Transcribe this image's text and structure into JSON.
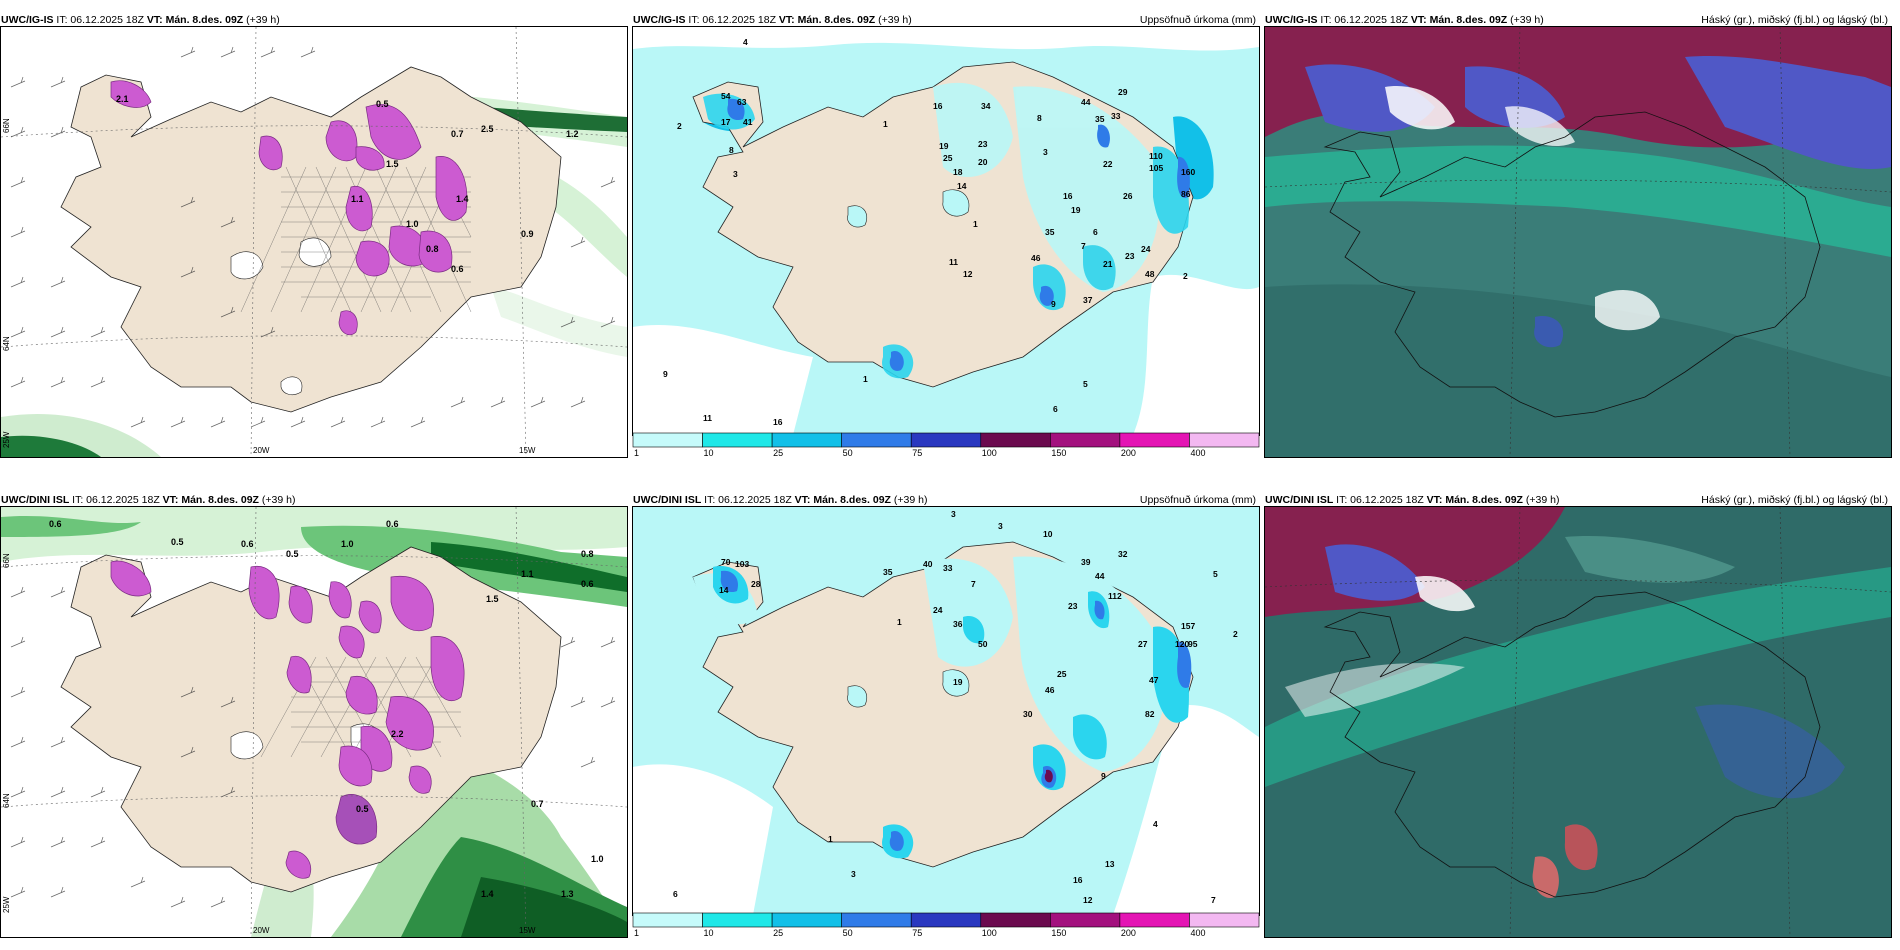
{
  "rows": [
    {
      "model": "UWC/IG-IS",
      "init": "IT: 06.12.2025 18Z",
      "valid": "VT: Mán. 8.des. 09Z",
      "lead": "(+39 h)",
      "wind_panel": {
        "lat_labels": [
          "66N",
          "64N",
          "25W"
        ],
        "lon_labels": [
          "20W",
          "15W"
        ],
        "values": [
          "0.5",
          "1.2",
          "0.7",
          "1.5",
          "2.5",
          "1.1",
          "1.0",
          "0.6",
          "0.8",
          "1.4",
          "0.9",
          "2.1"
        ]
      },
      "precip_panel": {
        "title": "Uppsöfnuð úrkoma (mm)",
        "values": [
          "4",
          "54",
          "63",
          "17",
          "41",
          "8",
          "2",
          "1",
          "3",
          "16",
          "19",
          "34",
          "44",
          "29",
          "35",
          "33",
          "25",
          "18",
          "23",
          "20",
          "14",
          "8",
          "3",
          "1",
          "110",
          "105",
          "160",
          "22",
          "26",
          "86",
          "12",
          "11",
          "16",
          "19",
          "6",
          "35",
          "7",
          "21",
          "23",
          "24",
          "46",
          "48",
          "2",
          "9",
          "37",
          "9",
          "11",
          "16",
          "1",
          "5",
          "6"
        ]
      },
      "cloud_panel": {
        "title": "Háský (gr.), miðský (fj.bl.) og lágský (bl.)"
      }
    },
    {
      "model": "UWC/DINI ISL",
      "init": "IT: 06.12.2025 18Z",
      "valid": "VT: Mán. 8.des. 09Z",
      "lead": "(+39 h)",
      "wind_panel": {
        "lat_labels": [
          "66N",
          "64N",
          "25W"
        ],
        "lon_labels": [
          "20W",
          "15W"
        ],
        "values": [
          "0.6",
          "0.6",
          "0.5",
          "0.6",
          "1.0",
          "0.5",
          "1.1",
          "1.5",
          "0.8",
          "2.2",
          "0.7",
          "1.0",
          "1.3",
          "0.6",
          "0.5",
          "1.4"
        ]
      },
      "precip_panel": {
        "title": "Uppsöfnuð úrkoma (mm)",
        "values": [
          "3",
          "3",
          "10",
          "39",
          "32",
          "70",
          "103",
          "35",
          "40",
          "33",
          "44",
          "28",
          "7",
          "14",
          "24",
          "36",
          "50",
          "23",
          "27",
          "112",
          "157",
          "120",
          "95",
          "2",
          "5",
          "1",
          "19",
          "25",
          "46",
          "30",
          "47",
          "82",
          "9",
          "13",
          "16",
          "12",
          "6",
          "7",
          "4",
          "3",
          "1"
        ]
      },
      "cloud_panel": {
        "title": "Háský (gr.), miðský (fj.bl.) og lágský (bl.)"
      }
    }
  ],
  "colorbar": {
    "ticks": [
      "1",
      "10",
      "25",
      "50",
      "75",
      "100",
      "150",
      "200",
      "400"
    ],
    "colors": [
      "#c6fbfb",
      "#1fe8e8",
      "#12c0e8",
      "#2f7be8",
      "#2a38c0",
      "#6b0a4e",
      "#a3117e",
      "#e415b4",
      "#f3b8f1"
    ]
  },
  "colors": {
    "land": "#efe3d2",
    "water": "#ffffff",
    "precip_light": "#b9f7f7",
    "precip_mid": "#2bd5ee",
    "wind_green_light": "#d6f2d6",
    "wind_green": "#6cc57a",
    "wind_green_dark": "#0f6e2a",
    "magenta": "#cc5bd1",
    "cloud_dark": "#2f6b68",
    "cloud_mid": "#4a8f86",
    "cloud_teal": "#1fd2a6",
    "cloud_blue": "#5058c6",
    "cloud_maroon": "#86214f"
  }
}
